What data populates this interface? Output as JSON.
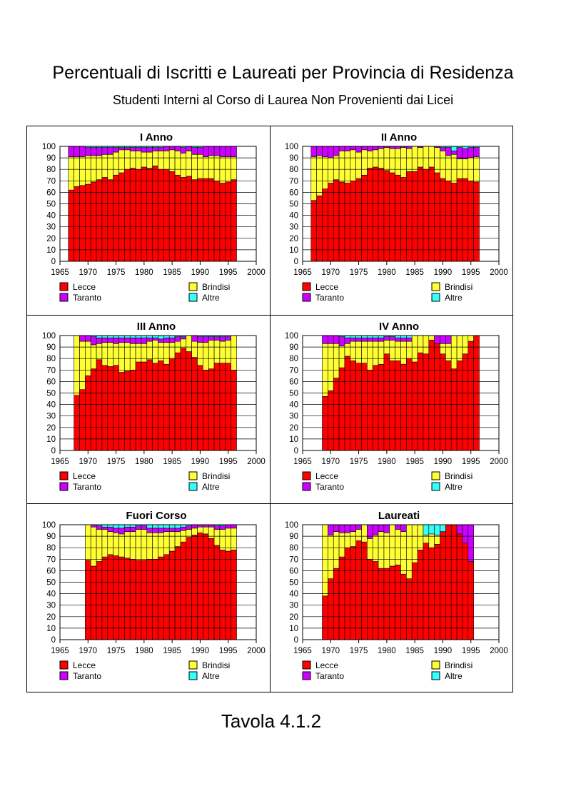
{
  "page": {
    "title": "Percentuali di Iscritti e Laureati per Provincia di Residenza",
    "subtitle": "Studenti Interni al Corso di Laurea Non Provenienti dai Licei",
    "footer": "Tavola 4.1.2"
  },
  "colors": {
    "Lecce": "#ff0000",
    "Brindisi": "#ffff33",
    "Taranto": "#cc00ff",
    "Altre": "#33ffff"
  },
  "chart_data": [
    {
      "type": "bar",
      "stacked": true,
      "title": "I Anno",
      "xlim": [
        1965,
        2000
      ],
      "ylim": [
        0,
        100
      ],
      "xticks": [
        "1965",
        "1970",
        "1975",
        "1980",
        "1985",
        "1990",
        "1995",
        "2000"
      ],
      "yticks": [
        "0",
        "10",
        "20",
        "30",
        "40",
        "50",
        "60",
        "70",
        "80",
        "90",
        "100"
      ],
      "x": [
        1967,
        1968,
        1969,
        1970,
        1971,
        1972,
        1973,
        1974,
        1975,
        1976,
        1977,
        1978,
        1979,
        1980,
        1981,
        1982,
        1983,
        1984,
        1985,
        1986,
        1987,
        1988,
        1989,
        1990,
        1991,
        1992,
        1993,
        1994,
        1995,
        1996
      ],
      "legend": [
        "Lecce",
        "Brindisi",
        "Taranto",
        "Altre"
      ],
      "series": [
        {
          "name": "Lecce",
          "values": [
            62,
            65,
            66,
            67,
            69,
            71,
            73,
            71,
            75,
            77,
            80,
            81,
            80,
            82,
            81,
            83,
            80,
            80,
            78,
            75,
            73,
            74,
            71,
            72,
            72,
            72,
            70,
            68,
            69,
            71
          ]
        },
        {
          "name": "Brindisi",
          "values": [
            29,
            26,
            25,
            25,
            23,
            21,
            20,
            22,
            20,
            20,
            17,
            15,
            16,
            13,
            14,
            13,
            16,
            16,
            19,
            21,
            21,
            22,
            22,
            21,
            19,
            20,
            22,
            23,
            22,
            20
          ]
        },
        {
          "name": "Taranto",
          "values": [
            9,
            9,
            9,
            7,
            7,
            7,
            6,
            6,
            4,
            2,
            2,
            3,
            3,
            4,
            4,
            3,
            3,
            4,
            3,
            4,
            5,
            4,
            6,
            6,
            9,
            8,
            8,
            9,
            9,
            9
          ]
        },
        {
          "name": "Altre",
          "values": [
            0,
            0,
            0,
            1,
            1,
            1,
            1,
            1,
            1,
            1,
            1,
            1,
            1,
            1,
            1,
            1,
            1,
            0,
            0,
            0,
            1,
            0,
            1,
            1,
            0,
            0,
            0,
            0,
            0,
            0
          ]
        }
      ]
    },
    {
      "type": "bar",
      "stacked": true,
      "title": "II Anno",
      "xlim": [
        1965,
        2000
      ],
      "ylim": [
        0,
        100
      ],
      "xticks": [
        "1965",
        "1970",
        "1975",
        "1980",
        "1985",
        "1990",
        "1995",
        "2000"
      ],
      "yticks": [
        "0",
        "10",
        "20",
        "30",
        "40",
        "50",
        "60",
        "70",
        "80",
        "90",
        "100"
      ],
      "x": [
        1967,
        1968,
        1969,
        1970,
        1971,
        1972,
        1973,
        1974,
        1975,
        1976,
        1977,
        1978,
        1979,
        1980,
        1981,
        1982,
        1983,
        1984,
        1985,
        1986,
        1987,
        1988,
        1989,
        1990,
        1991,
        1992,
        1993,
        1994,
        1995,
        1996
      ],
      "legend": [
        "Lecce",
        "Brindisi",
        "Taranto",
        "Altre"
      ],
      "series": [
        {
          "name": "Lecce",
          "values": [
            53,
            57,
            63,
            68,
            71,
            69,
            68,
            70,
            72,
            75,
            81,
            82,
            81,
            79,
            77,
            75,
            73,
            78,
            78,
            82,
            80,
            82,
            77,
            72,
            70,
            68,
            72,
            72,
            70,
            69
          ]
        },
        {
          "name": "Brindisi",
          "values": [
            38,
            35,
            28,
            22,
            21,
            27,
            28,
            27,
            23,
            22,
            15,
            15,
            17,
            20,
            21,
            23,
            26,
            20,
            22,
            17,
            20,
            18,
            22,
            24,
            22,
            25,
            17,
            17,
            20,
            22
          ]
        },
        {
          "name": "Taranto",
          "values": [
            9,
            8,
            9,
            10,
            8,
            4,
            4,
            3,
            5,
            3,
            4,
            3,
            2,
            1,
            2,
            2,
            1,
            2,
            0,
            1,
            0,
            0,
            1,
            3,
            7,
            3,
            10,
            9,
            9,
            8
          ]
        },
        {
          "name": "Altre",
          "values": [
            0,
            0,
            0,
            0,
            0,
            0,
            0,
            0,
            0,
            0,
            0,
            0,
            0,
            0,
            0,
            0,
            0,
            0,
            0,
            0,
            0,
            0,
            0,
            1,
            1,
            4,
            1,
            2,
            1,
            1
          ]
        }
      ]
    },
    {
      "type": "bar",
      "stacked": true,
      "title": "III Anno",
      "xlim": [
        1965,
        2000
      ],
      "ylim": [
        0,
        100
      ],
      "xticks": [
        "1965",
        "1970",
        "1975",
        "1980",
        "1985",
        "1990",
        "1995",
        "2000"
      ],
      "yticks": [
        "0",
        "10",
        "20",
        "30",
        "40",
        "50",
        "60",
        "70",
        "80",
        "90",
        "100"
      ],
      "x": [
        1968,
        1969,
        1970,
        1971,
        1972,
        1973,
        1974,
        1975,
        1976,
        1977,
        1978,
        1979,
        1980,
        1981,
        1982,
        1983,
        1984,
        1985,
        1986,
        1987,
        1988,
        1989,
        1990,
        1991,
        1992,
        1993,
        1994,
        1995,
        1996
      ],
      "legend": [
        "Lecce",
        "Brindisi",
        "Taranto",
        "Altre"
      ],
      "series": [
        {
          "name": "Lecce",
          "values": [
            48,
            53,
            65,
            71,
            79,
            74,
            73,
            74,
            68,
            69,
            70,
            77,
            77,
            79,
            76,
            78,
            75,
            80,
            85,
            89,
            86,
            81,
            74,
            70,
            71,
            76,
            76,
            76,
            70
          ]
        },
        {
          "name": "Brindisi",
          "values": [
            52,
            42,
            30,
            21,
            14,
            20,
            21,
            19,
            26,
            25,
            23,
            16,
            16,
            16,
            20,
            16,
            19,
            14,
            10,
            8,
            14,
            14,
            20,
            24,
            25,
            20,
            19,
            20,
            30
          ]
        },
        {
          "name": "Taranto",
          "values": [
            0,
            5,
            5,
            7,
            5,
            4,
            4,
            5,
            4,
            4,
            5,
            5,
            5,
            3,
            2,
            3,
            4,
            4,
            4,
            2,
            0,
            5,
            5,
            5,
            3,
            3,
            4,
            3,
            0
          ]
        },
        {
          "name": "Altre",
          "values": [
            0,
            0,
            0,
            1,
            2,
            2,
            2,
            2,
            2,
            2,
            2,
            2,
            2,
            2,
            2,
            3,
            2,
            2,
            1,
            1,
            0,
            0,
            1,
            1,
            1,
            1,
            1,
            1,
            0
          ]
        }
      ]
    },
    {
      "type": "bar",
      "stacked": true,
      "title": "IV Anno",
      "xlim": [
        1965,
        2000
      ],
      "ylim": [
        0,
        100
      ],
      "xticks": [
        "1965",
        "1970",
        "1975",
        "1980",
        "1985",
        "1990",
        "1995",
        "2000"
      ],
      "yticks": [
        "0",
        "10",
        "20",
        "30",
        "40",
        "50",
        "60",
        "70",
        "80",
        "90",
        "100"
      ],
      "x": [
        1969,
        1970,
        1971,
        1972,
        1973,
        1974,
        1975,
        1976,
        1977,
        1978,
        1979,
        1980,
        1981,
        1982,
        1983,
        1984,
        1985,
        1986,
        1987,
        1988,
        1989,
        1990,
        1991,
        1992,
        1993,
        1994,
        1995,
        1996
      ],
      "legend": [
        "Lecce",
        "Brindisi",
        "Taranto",
        "Altre"
      ],
      "series": [
        {
          "name": "Lecce",
          "values": [
            47,
            52,
            63,
            72,
            82,
            78,
            76,
            76,
            70,
            74,
            75,
            84,
            78,
            78,
            75,
            80,
            77,
            85,
            84,
            96,
            93,
            84,
            78,
            71,
            78,
            84,
            95,
            100
          ]
        },
        {
          "name": "Brindisi",
          "values": [
            46,
            41,
            30,
            19,
            11,
            17,
            19,
            19,
            25,
            21,
            20,
            12,
            18,
            17,
            20,
            15,
            23,
            15,
            16,
            4,
            0,
            9,
            15,
            29,
            22,
            16,
            5,
            0
          ]
        },
        {
          "name": "Taranto",
          "values": [
            7,
            7,
            7,
            8,
            5,
            3,
            3,
            3,
            3,
            3,
            3,
            3,
            3,
            3,
            3,
            3,
            0,
            0,
            0,
            0,
            7,
            7,
            7,
            0,
            0,
            0,
            0,
            0
          ]
        },
        {
          "name": "Altre",
          "values": [
            0,
            0,
            0,
            1,
            2,
            2,
            2,
            2,
            2,
            2,
            2,
            1,
            1,
            2,
            2,
            2,
            0,
            0,
            0,
            0,
            0,
            0,
            0,
            0,
            0,
            0,
            0,
            0
          ]
        }
      ]
    },
    {
      "type": "bar",
      "stacked": true,
      "title": "Fuori Corso",
      "xlim": [
        1965,
        2000
      ],
      "ylim": [
        0,
        100
      ],
      "xticks": [
        "1965",
        "1970",
        "1975",
        "1980",
        "1985",
        "1990",
        "1995",
        "2000"
      ],
      "yticks": [
        "0",
        "10",
        "20",
        "30",
        "40",
        "50",
        "60",
        "70",
        "80",
        "90",
        "100"
      ],
      "x": [
        1970,
        1971,
        1972,
        1973,
        1974,
        1975,
        1976,
        1977,
        1978,
        1979,
        1980,
        1981,
        1982,
        1983,
        1984,
        1985,
        1986,
        1987,
        1988,
        1989,
        1990,
        1991,
        1992,
        1993,
        1994,
        1995,
        1996
      ],
      "legend": [
        "Lecce",
        "Brindisi",
        "Taranto",
        "Altre"
      ],
      "series": [
        {
          "name": "Lecce",
          "values": [
            69,
            64,
            68,
            72,
            74,
            73,
            72,
            71,
            70,
            69,
            69,
            70,
            70,
            72,
            74,
            77,
            81,
            85,
            89,
            91,
            93,
            92,
            88,
            82,
            78,
            77,
            78
          ]
        },
        {
          "name": "Brindisi",
          "values": [
            31,
            34,
            28,
            24,
            20,
            20,
            20,
            23,
            24,
            27,
            27,
            23,
            23,
            21,
            20,
            17,
            13,
            10,
            7,
            6,
            5,
            6,
            10,
            14,
            18,
            20,
            19
          ]
        },
        {
          "name": "Taranto",
          "values": [
            0,
            2,
            3,
            2,
            4,
            4,
            5,
            4,
            4,
            3,
            3,
            4,
            4,
            4,
            3,
            3,
            3,
            3,
            3,
            3,
            2,
            2,
            2,
            3,
            3,
            3,
            3
          ]
        },
        {
          "name": "Altre",
          "values": [
            0,
            0,
            1,
            2,
            2,
            3,
            3,
            2,
            2,
            1,
            1,
            3,
            3,
            3,
            3,
            3,
            3,
            2,
            1,
            0,
            0,
            0,
            0,
            1,
            1,
            0,
            0
          ]
        }
      ]
    },
    {
      "type": "bar",
      "stacked": true,
      "title": "Laureati",
      "xlim": [
        1965,
        2000
      ],
      "ylim": [
        0,
        100
      ],
      "xticks": [
        "1965",
        "1970",
        "1975",
        "1980",
        "1985",
        "1990",
        "1995",
        "2000"
      ],
      "yticks": [
        "0",
        "10",
        "20",
        "30",
        "40",
        "50",
        "60",
        "70",
        "80",
        "90",
        "100"
      ],
      "x": [
        1969,
        1970,
        1971,
        1972,
        1973,
        1974,
        1975,
        1976,
        1977,
        1978,
        1979,
        1980,
        1981,
        1982,
        1983,
        1984,
        1985,
        1986,
        1987,
        1988,
        1989,
        1990,
        1991,
        1992,
        1993,
        1994,
        1995,
        1996
      ],
      "legend": [
        "Lecce",
        "Brindisi",
        "Taranto",
        "Altre"
      ],
      "series": [
        {
          "name": "Lecce",
          "values": [
            38,
            53,
            62,
            72,
            80,
            81,
            86,
            85,
            70,
            68,
            62,
            62,
            64,
            65,
            57,
            53,
            67,
            78,
            84,
            80,
            83,
            94,
            100,
            100,
            92,
            84,
            68,
            0
          ]
        },
        {
          "name": "Brindisi",
          "values": [
            62,
            38,
            32,
            21,
            13,
            13,
            10,
            15,
            18,
            23,
            32,
            31,
            36,
            31,
            37,
            47,
            33,
            22,
            7,
            12,
            8,
            0,
            0,
            0,
            0,
            0,
            0,
            0
          ]
        },
        {
          "name": "Taranto",
          "values": [
            0,
            9,
            6,
            7,
            7,
            6,
            4,
            0,
            12,
            9,
            6,
            7,
            0,
            4,
            6,
            0,
            0,
            0,
            0,
            0,
            0,
            0,
            0,
            0,
            8,
            16,
            32,
            0
          ]
        },
        {
          "name": "Altre",
          "values": [
            0,
            0,
            0,
            0,
            0,
            0,
            0,
            0,
            0,
            0,
            0,
            0,
            0,
            0,
            0,
            0,
            0,
            0,
            9,
            8,
            9,
            6,
            0,
            0,
            0,
            0,
            0,
            0
          ]
        }
      ]
    }
  ]
}
